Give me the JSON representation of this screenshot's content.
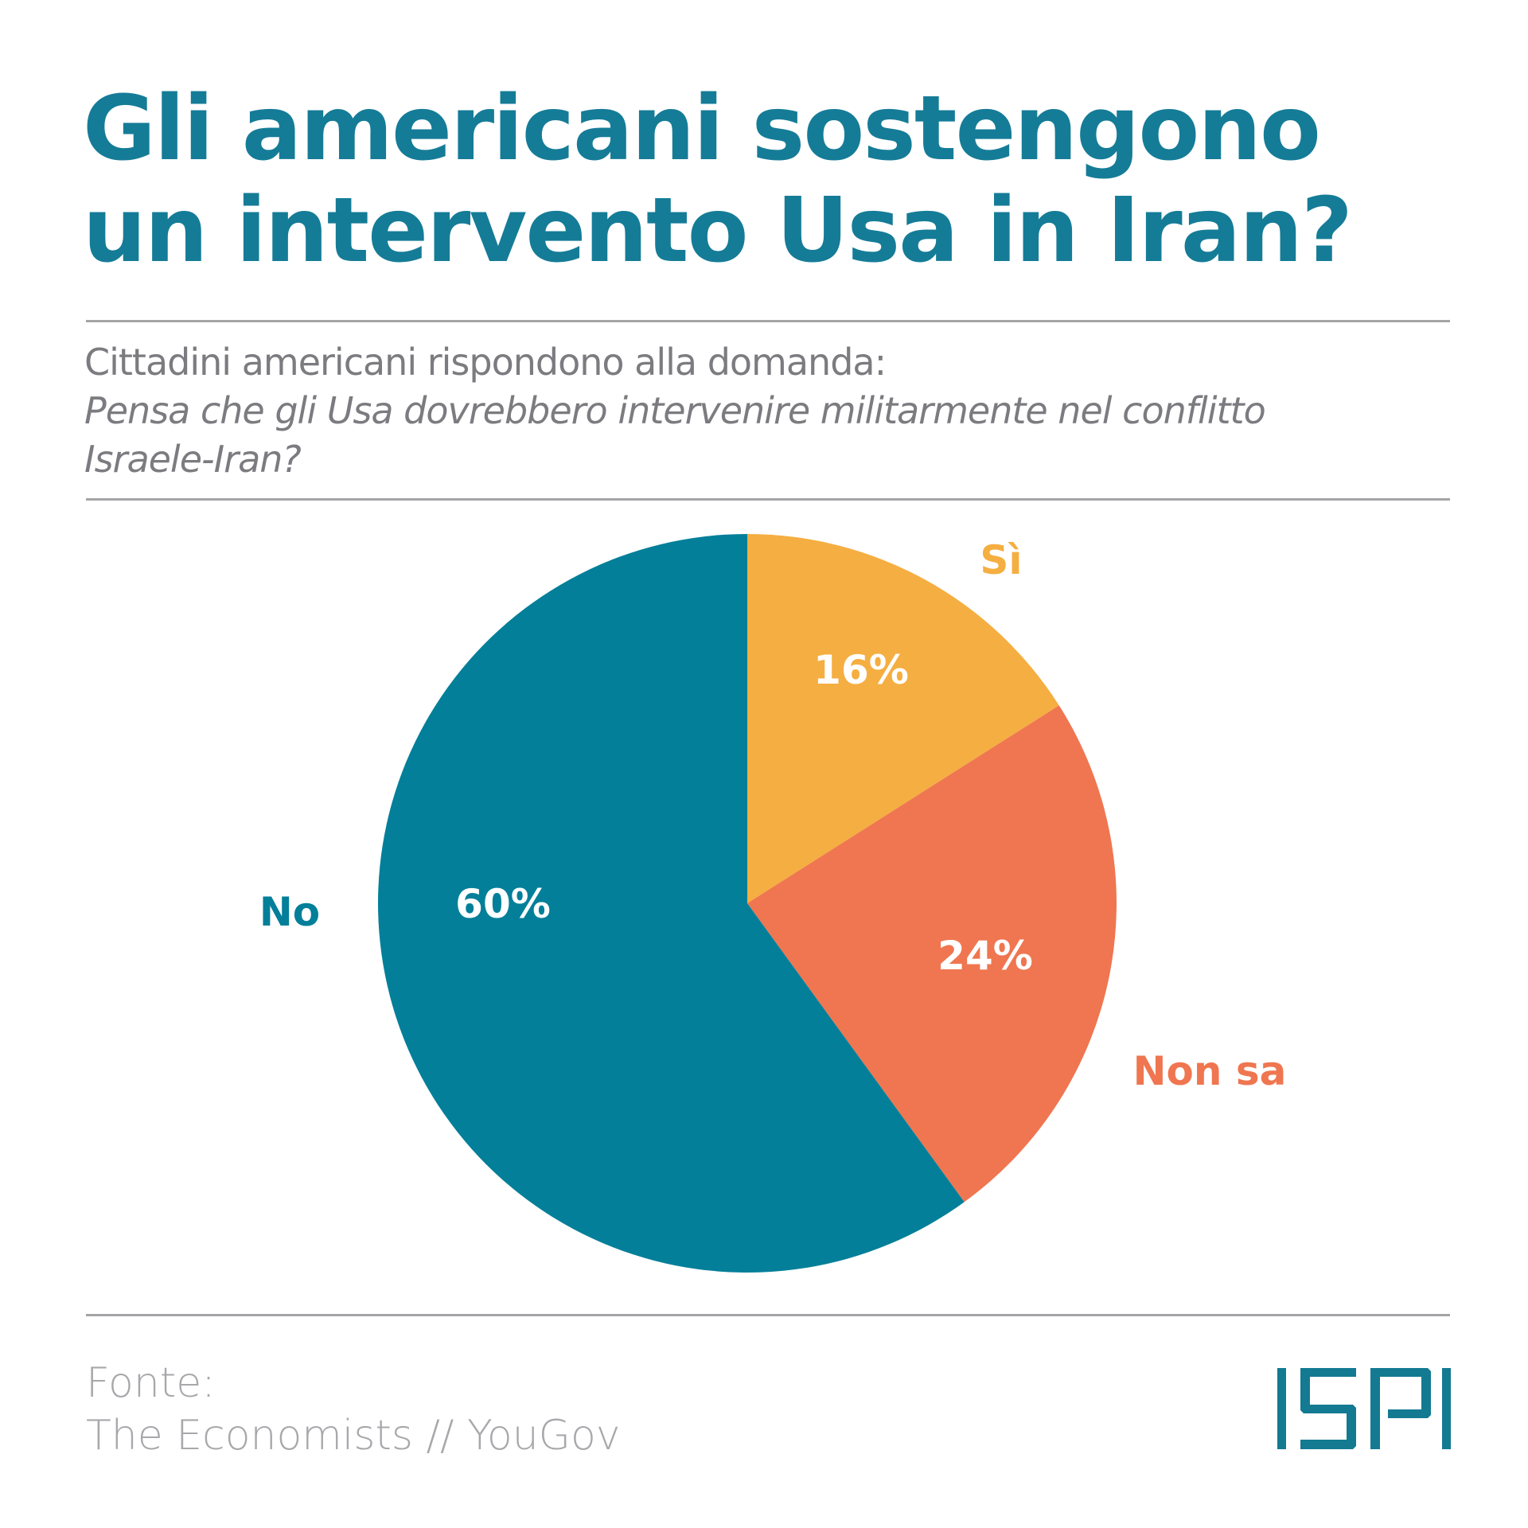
{
  "header": {
    "title_line1": "Gli americani sostengono",
    "title_line2": "un intervento Usa in Iran?"
  },
  "subtitle": {
    "intro": "Cittadini americani rispondono alla domanda:",
    "question_line1": "Pensa che gli Usa dovrebbero intervenire militarmente nel conflitto",
    "question_line2": "Israele-Iran?"
  },
  "chart_data": {
    "type": "pie",
    "title": "Gli americani sostengono un intervento Usa in Iran?",
    "slices": [
      {
        "label": "Sì",
        "value": 16,
        "value_label": "16%",
        "color": "#f5ae41"
      },
      {
        "label": "Non sa",
        "value": 24,
        "value_label": "24%",
        "color": "#ef7650"
      },
      {
        "label": "No",
        "value": 60,
        "value_label": "60%",
        "color": "#037f99"
      }
    ],
    "start": "top",
    "direction": "clockwise"
  },
  "footer": {
    "source_label": "Fonte:",
    "source": "The Economists // YouGov",
    "logo": "ISPI"
  }
}
